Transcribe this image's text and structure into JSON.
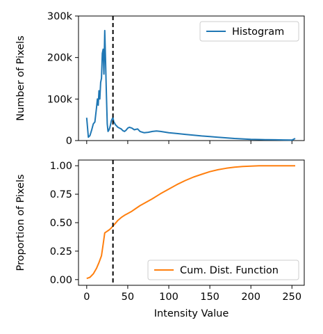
{
  "chart_data": [
    {
      "type": "line",
      "ylabel": "Number of Pixels",
      "xlabel": "",
      "xlim": [
        -10,
        265
      ],
      "ylim": [
        0,
        300000
      ],
      "yticks": [
        0,
        100000,
        200000,
        300000
      ],
      "ytick_labels": [
        "0",
        "100k",
        "200k",
        "300k"
      ],
      "xticks": [
        0,
        50,
        100,
        150,
        200,
        250
      ],
      "show_xtick_labels": false,
      "legend": "top-right",
      "vline_x": 32,
      "series": [
        {
          "name": "Histogram",
          "color": "#1f77b4",
          "x": [
            0,
            2,
            4,
            6,
            8,
            10,
            12,
            13,
            14,
            15,
            16,
            17,
            18,
            19,
            20,
            21,
            22,
            23,
            24,
            25,
            26,
            27,
            28,
            29,
            30,
            31,
            32,
            33,
            34,
            35,
            36,
            38,
            40,
            42,
            44,
            46,
            48,
            50,
            52,
            55,
            58,
            60,
            62,
            65,
            68,
            70,
            75,
            80,
            85,
            90,
            100,
            110,
            120,
            130,
            140,
            150,
            160,
            170,
            180,
            190,
            200,
            210,
            220,
            230,
            240,
            250,
            254
          ],
          "y": [
            55000,
            8000,
            12000,
            25000,
            40000,
            45000,
            80000,
            100000,
            85000,
            120000,
            100000,
            140000,
            150000,
            210000,
            220000,
            160000,
            265000,
            190000,
            110000,
            40000,
            22000,
            25000,
            30000,
            38000,
            48000,
            52000,
            55000,
            45000,
            42000,
            38000,
            36000,
            32000,
            30000,
            28000,
            24000,
            22000,
            25000,
            30000,
            32000,
            30000,
            26000,
            27000,
            28000,
            22000,
            20000,
            19000,
            20000,
            22000,
            23000,
            22000,
            19000,
            17000,
            15000,
            13000,
            11000,
            9500,
            8000,
            6500,
            5000,
            4000,
            3000,
            2500,
            2000,
            1800,
            1500,
            1200,
            5000
          ]
        }
      ]
    },
    {
      "type": "line",
      "ylabel": "Proportion of Pixels",
      "xlabel": "Intensity Value",
      "xlim": [
        -10,
        265
      ],
      "ylim": [
        -0.05,
        1.05
      ],
      "yticks": [
        0,
        0.25,
        0.5,
        0.75,
        1.0
      ],
      "ytick_labels": [
        "0.00",
        "0.25",
        "0.50",
        "0.75",
        "1.00"
      ],
      "xticks": [
        0,
        50,
        100,
        150,
        200,
        250
      ],
      "xtick_labels": [
        "0",
        "50",
        "100",
        "150",
        "200",
        "250"
      ],
      "legend": "bottom-right",
      "vline_x": 32,
      "series": [
        {
          "name": "Cum. Dist. Function",
          "color": "#ff7f0e",
          "x": [
            0,
            4,
            8,
            12,
            15,
            18,
            20,
            22,
            24,
            26,
            28,
            30,
            32,
            35,
            38,
            42,
            46,
            50,
            55,
            60,
            65,
            70,
            80,
            90,
            100,
            110,
            120,
            130,
            140,
            150,
            160,
            170,
            180,
            190,
            200,
            210,
            220,
            230,
            240,
            254
          ],
          "y": [
            0.01,
            0.02,
            0.05,
            0.1,
            0.15,
            0.21,
            0.31,
            0.41,
            0.42,
            0.43,
            0.44,
            0.455,
            0.47,
            0.495,
            0.52,
            0.545,
            0.565,
            0.58,
            0.6,
            0.625,
            0.65,
            0.67,
            0.71,
            0.755,
            0.795,
            0.835,
            0.87,
            0.9,
            0.925,
            0.948,
            0.965,
            0.978,
            0.987,
            0.993,
            0.997,
            0.999,
            1.0,
            1.0,
            1.0,
            1.0
          ]
        }
      ]
    }
  ]
}
